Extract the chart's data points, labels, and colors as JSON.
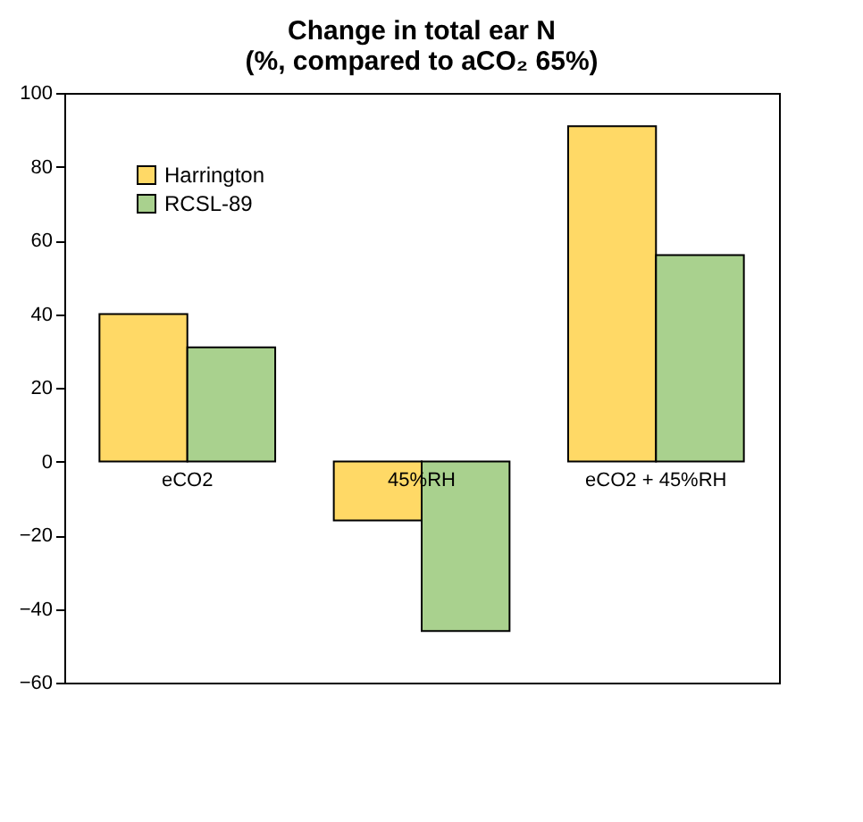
{
  "chart_data": {
    "type": "bar",
    "title": "Change in total ear N\n(%, compared  to aCO₂ 65%)",
    "categories": [
      "eCO2",
      "45%RH",
      "eCO2 + 45%RH"
    ],
    "series": [
      {
        "name": "Harrington",
        "color": "#ffd966",
        "values": [
          40,
          -16,
          91
        ]
      },
      {
        "name": "RCSL-89",
        "color": "#a9d18e",
        "values": [
          31,
          -46,
          56
        ]
      }
    ],
    "ylim": [
      -60,
      100
    ],
    "yticks": [
      -60,
      -40,
      -20,
      0,
      20,
      40,
      60,
      80,
      100
    ],
    "grid": false,
    "legend": "top left"
  }
}
